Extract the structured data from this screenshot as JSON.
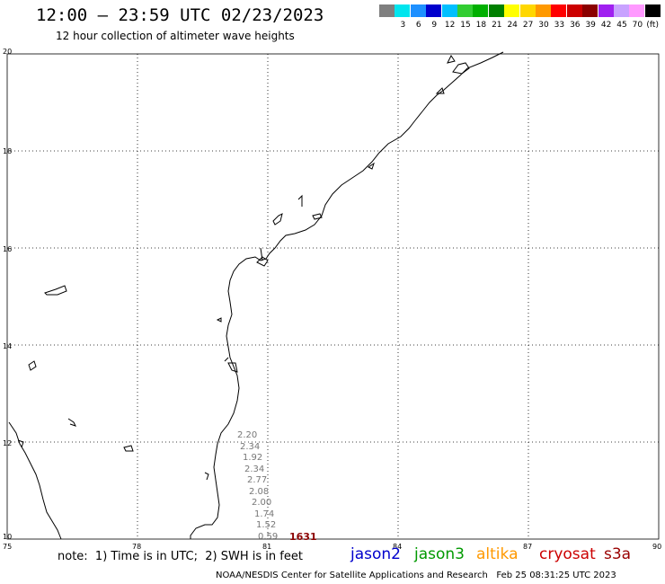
{
  "header": {
    "title": "12:00 – 23:59 UTC 02/23/2023",
    "subtitle": "12 hour collection of altimeter wave heights"
  },
  "legend": {
    "unit": "(ft)",
    "swatches": [
      {
        "color": "#7f7f7f",
        "label": ""
      },
      {
        "color": "#00e5ee",
        "label": "3"
      },
      {
        "color": "#1e90ff",
        "label": "6"
      },
      {
        "color": "#0000cd",
        "label": "9"
      },
      {
        "color": "#00bfff",
        "label": "12"
      },
      {
        "color": "#32cd32",
        "label": "15"
      },
      {
        "color": "#00b000",
        "label": "18"
      },
      {
        "color": "#008000",
        "label": "21"
      },
      {
        "color": "#ffff00",
        "label": "24"
      },
      {
        "color": "#ffd700",
        "label": "27"
      },
      {
        "color": "#ff9900",
        "label": "30"
      },
      {
        "color": "#ff0000",
        "label": "33"
      },
      {
        "color": "#cc0000",
        "label": "36"
      },
      {
        "color": "#8b0000",
        "label": "39"
      },
      {
        "color": "#a020f0",
        "label": "42"
      },
      {
        "color": "#c8a2ff",
        "label": "45"
      },
      {
        "color": "#ff99ff",
        "label": "70"
      },
      {
        "color": "#000000",
        "label": ""
      }
    ]
  },
  "map": {
    "lon_labels": [
      "75",
      "78",
      "81",
      "84",
      "87",
      "90"
    ],
    "lat_labels": [
      "20",
      "18",
      "16",
      "14",
      "12",
      "10"
    ],
    "swh_values": [
      "2.20",
      "2.34",
      "1.92",
      "2.34",
      "2.77",
      "2.08",
      "2.00",
      "1.74",
      "1.52",
      "0.59"
    ],
    "time_marker": "1631"
  },
  "note": "note:  1) Time is in UTC;  2) SWH is in feet",
  "satellites": [
    {
      "name": "jason2",
      "color": "#0000cc"
    },
    {
      "name": "jason3",
      "color": "#009900"
    },
    {
      "name": "altika",
      "color": "#ff9900"
    },
    {
      "name": "cryosat",
      "color": "#cc0000"
    },
    {
      "name": "s3a",
      "color": "#990000"
    }
  ],
  "footer": {
    "org": "NOAA/NESDIS Center for Satellite Applications and Research",
    "timestamp": "Feb 25 08:31:25 UTC 2023"
  }
}
